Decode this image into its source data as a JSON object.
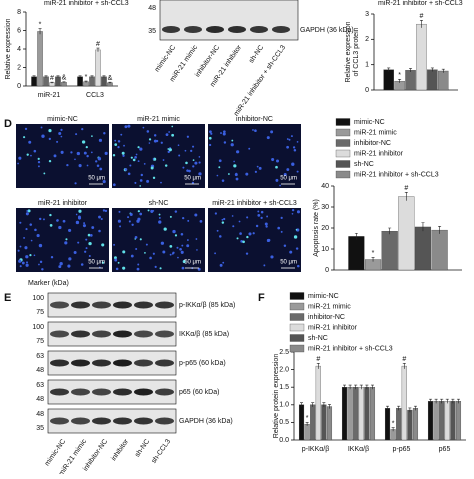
{
  "panel_labels": [
    "D",
    "E",
    "F"
  ],
  "chart_data": [
    {
      "type": "bar",
      "legend_fragment": "miR-21 inhibitor + sh-CCL3",
      "ylabel": [
        "Relative expression"
      ],
      "categories": [
        "miR-21",
        "CCL3"
      ],
      "ylim": [
        0,
        8
      ],
      "yticks": [
        0,
        2,
        4,
        6,
        8
      ],
      "series": [
        {
          "color": "#111111",
          "values": [
            1,
            1
          ],
          "errors": [
            0.1,
            0.1
          ],
          "sig": [
            null,
            null
          ]
        },
        {
          "color": "#9a9a9a",
          "values": [
            5.9,
            0.45
          ],
          "errors": [
            0.3,
            0.08
          ],
          "sig": [
            "*",
            "*"
          ]
        },
        {
          "color": "#6a6a6a",
          "values": [
            1,
            1
          ],
          "errors": [
            0.1,
            0.1
          ],
          "sig": [
            null,
            null
          ]
        },
        {
          "color": "#dcdcdc",
          "values": [
            0.35,
            3.9
          ],
          "errors": [
            0.06,
            0.2
          ],
          "sig": [
            "#",
            "#"
          ]
        },
        {
          "color": "#555555",
          "values": [
            1,
            1
          ],
          "errors": [
            0.1,
            0.1
          ],
          "sig": [
            null,
            null
          ]
        },
        {
          "color": "#8a8a8a",
          "values": [
            0.4,
            0.35
          ],
          "errors": [
            0.06,
            0.06
          ],
          "sig": [
            "&",
            "&"
          ]
        }
      ]
    },
    {
      "type": "bar",
      "legend_fragment": "miR-21 inhibitor + sh-CCL3",
      "ylabel": [
        "Relative expression",
        "of CCL3 protein"
      ],
      "categories": [
        null
      ],
      "ylim": [
        0,
        3
      ],
      "yticks": [
        0,
        1,
        2,
        3
      ],
      "series": [
        {
          "color": "#111111",
          "values": [
            0.8
          ],
          "errors": [
            0.07
          ],
          "sig": [
            null
          ]
        },
        {
          "color": "#9a9a9a",
          "values": [
            0.35
          ],
          "errors": [
            0.07
          ],
          "sig": [
            "*"
          ]
        },
        {
          "color": "#6a6a6a",
          "values": [
            0.78
          ],
          "errors": [
            0.07
          ],
          "sig": [
            null
          ]
        },
        {
          "color": "#dcdcdc",
          "values": [
            2.6
          ],
          "errors": [
            0.15
          ],
          "sig": [
            "#"
          ]
        },
        {
          "color": "#555555",
          "values": [
            0.8
          ],
          "errors": [
            0.07
          ],
          "sig": [
            null
          ]
        },
        {
          "color": "#8a8a8a",
          "values": [
            0.75
          ],
          "errors": [
            0.07
          ],
          "sig": [
            null
          ]
        }
      ]
    },
    {
      "type": "bar",
      "ylabel": [
        "Apoptosis rate (%)"
      ],
      "categories": [
        null
      ],
      "ylim": [
        0,
        40
      ],
      "yticks": [
        0,
        10,
        20,
        30,
        40
      ],
      "series": [
        {
          "name": "mimic-NC",
          "color": "#111111",
          "values": [
            16
          ],
          "errors": [
            1.5
          ],
          "sig": [
            null
          ]
        },
        {
          "name": "miR-21 mimic",
          "color": "#9a9a9a",
          "values": [
            5
          ],
          "errors": [
            1
          ],
          "sig": [
            "*"
          ]
        },
        {
          "name": "inhibitor-NC",
          "color": "#6a6a6a",
          "values": [
            18.5
          ],
          "errors": [
            1.5
          ],
          "sig": [
            null
          ]
        },
        {
          "name": "miR-21 inhibitor",
          "color": "#dcdcdc",
          "values": [
            35
          ],
          "errors": [
            2
          ],
          "sig": [
            "#"
          ]
        },
        {
          "name": "sh-NC",
          "color": "#555555",
          "values": [
            20.5
          ],
          "errors": [
            2
          ],
          "sig": [
            null
          ]
        },
        {
          "name": "miR-21 inhibitor + sh-CCL3",
          "color": "#8a8a8a",
          "values": [
            19
          ],
          "errors": [
            1.8
          ],
          "sig": [
            null
          ]
        }
      ]
    },
    {
      "type": "bar",
      "ylabel": [
        "Relative protein expression"
      ],
      "categories": [
        "p-IKKα/β",
        "IKKα/β",
        "p-p65",
        "p65"
      ],
      "ylim": [
        0,
        2.5
      ],
      "yticks": [
        {
          "value": 0,
          "label": "0.0"
        },
        {
          "value": 0.5,
          "label": "0.5"
        },
        {
          "value": 1,
          "label": "1.0"
        },
        {
          "value": 1.5,
          "label": "1.5"
        },
        {
          "value": 2,
          "label": "2.0"
        },
        {
          "value": 2.5,
          "label": "2.5"
        }
      ],
      "series": [
        {
          "name": "mimic-NC",
          "color": "#111111",
          "values": [
            1,
            1.5,
            0.9,
            1.1
          ],
          "errors": [
            0.06,
            0.06,
            0.06,
            0.06
          ],
          "sig": [
            null,
            null,
            null,
            null
          ]
        },
        {
          "name": "miR-21 mimic",
          "color": "#9a9a9a",
          "values": [
            0.45,
            1.5,
            0.3,
            1.1
          ],
          "errors": [
            0.05,
            0.06,
            0.05,
            0.06
          ],
          "sig": [
            "*",
            null,
            "*",
            null
          ]
        },
        {
          "name": "inhibitor-NC",
          "color": "#6a6a6a",
          "values": [
            1,
            1.5,
            0.9,
            1.1
          ],
          "errors": [
            0.06,
            0.06,
            0.06,
            0.06
          ],
          "sig": [
            null,
            null,
            null,
            null
          ]
        },
        {
          "name": "miR-21 inhibitor",
          "color": "#dcdcdc",
          "values": [
            2.1,
            1.5,
            2.1,
            1.1
          ],
          "errors": [
            0.08,
            0.06,
            0.08,
            0.06
          ],
          "sig": [
            "#",
            null,
            "#",
            null
          ]
        },
        {
          "name": "sh-NC",
          "color": "#555555",
          "values": [
            1,
            1.5,
            0.85,
            1.1
          ],
          "errors": [
            0.06,
            0.06,
            0.06,
            0.06
          ],
          "sig": [
            null,
            null,
            null,
            null
          ]
        },
        {
          "name": "miR-21 inhibitor + sh-CCL3",
          "color": "#8a8a8a",
          "values": [
            0.95,
            1.5,
            0.9,
            1.1
          ],
          "errors": [
            0.06,
            0.06,
            0.06,
            0.06
          ],
          "sig": [
            null,
            null,
            null,
            null
          ]
        }
      ]
    }
  ],
  "blot_b": {
    "markers": [
      "48",
      "35"
    ],
    "label": "GAPDH (36 kDa)",
    "lanes": [
      "mimic-NC",
      "miR-21 mimic",
      "inhibitor-NC",
      "miR-21 inhibitor",
      "sh-NC",
      "miR-21 inhibitor + sh-CCL3"
    ]
  },
  "micrographs": {
    "scale": "50 μm",
    "titles": [
      "mimic-NC",
      "miR-21 mimic",
      "inhibitor-NC",
      "miR-21 inhibitor",
      "sh-NC",
      "miR-21 inhibitor + sh-CCL3"
    ]
  },
  "blot_e": {
    "marker_title": "Marker (kDa)",
    "rows": [
      {
        "label": "p-IKKα/β (85 kDa)",
        "markers": [
          "100",
          "75"
        ]
      },
      {
        "label": "IKKα/β (85 kDa)",
        "markers": [
          "100",
          "75"
        ]
      },
      {
        "label": "p-p65 (60 kDa)",
        "markers": [
          "63",
          "48"
        ]
      },
      {
        "label": "p65 (60 kDa)",
        "markers": [
          "63",
          "48"
        ]
      },
      {
        "label": "GAPDH (36 kDa)",
        "markers": [
          "48",
          "35"
        ]
      }
    ],
    "lanes": [
      "mimic-NC",
      "miR-21 mimic",
      "inhibitor-NC",
      "inhibitor",
      "sh-NC",
      "sh-CCL3"
    ]
  }
}
